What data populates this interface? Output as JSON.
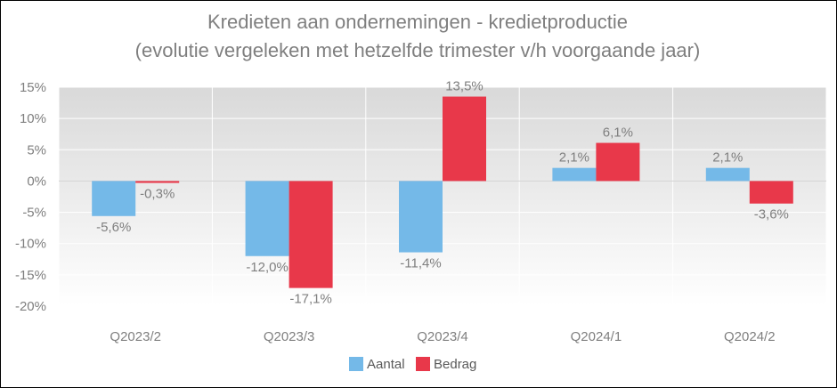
{
  "chart_data": {
    "type": "bar",
    "title": "Kredieten aan ondernemingen - kredietproductie",
    "subtitle": "(evolutie vergeleken met hetzelfde trimester v/h voorgaande jaar)",
    "categories": [
      "Q2023/2",
      "Q2023/3",
      "Q2023/4",
      "Q2024/1",
      "Q2024/2"
    ],
    "series": [
      {
        "name": "Aantal",
        "values": [
          -5.6,
          -12.0,
          -11.4,
          2.1,
          2.1
        ],
        "labels": [
          "-5,6%",
          "-12,0%",
          "-11,4%",
          "2,1%",
          "2,1%"
        ],
        "color": "#74b9e8"
      },
      {
        "name": "Bedrag",
        "values": [
          -0.3,
          -17.1,
          13.5,
          6.1,
          -3.6
        ],
        "labels": [
          "-0,3%",
          "-17,1%",
          "13,5%",
          "6,1%",
          "-3,6%"
        ],
        "color": "#e8384a"
      }
    ],
    "ylim": [
      -20,
      15
    ],
    "yticks": [
      15,
      10,
      5,
      0,
      -5,
      -10,
      -15,
      -20
    ],
    "ytick_labels": [
      "15%",
      "10%",
      "5%",
      "0%",
      "-5%",
      "-10%",
      "-15%",
      "-20%"
    ],
    "grid": true,
    "legend_position": "bottom"
  }
}
